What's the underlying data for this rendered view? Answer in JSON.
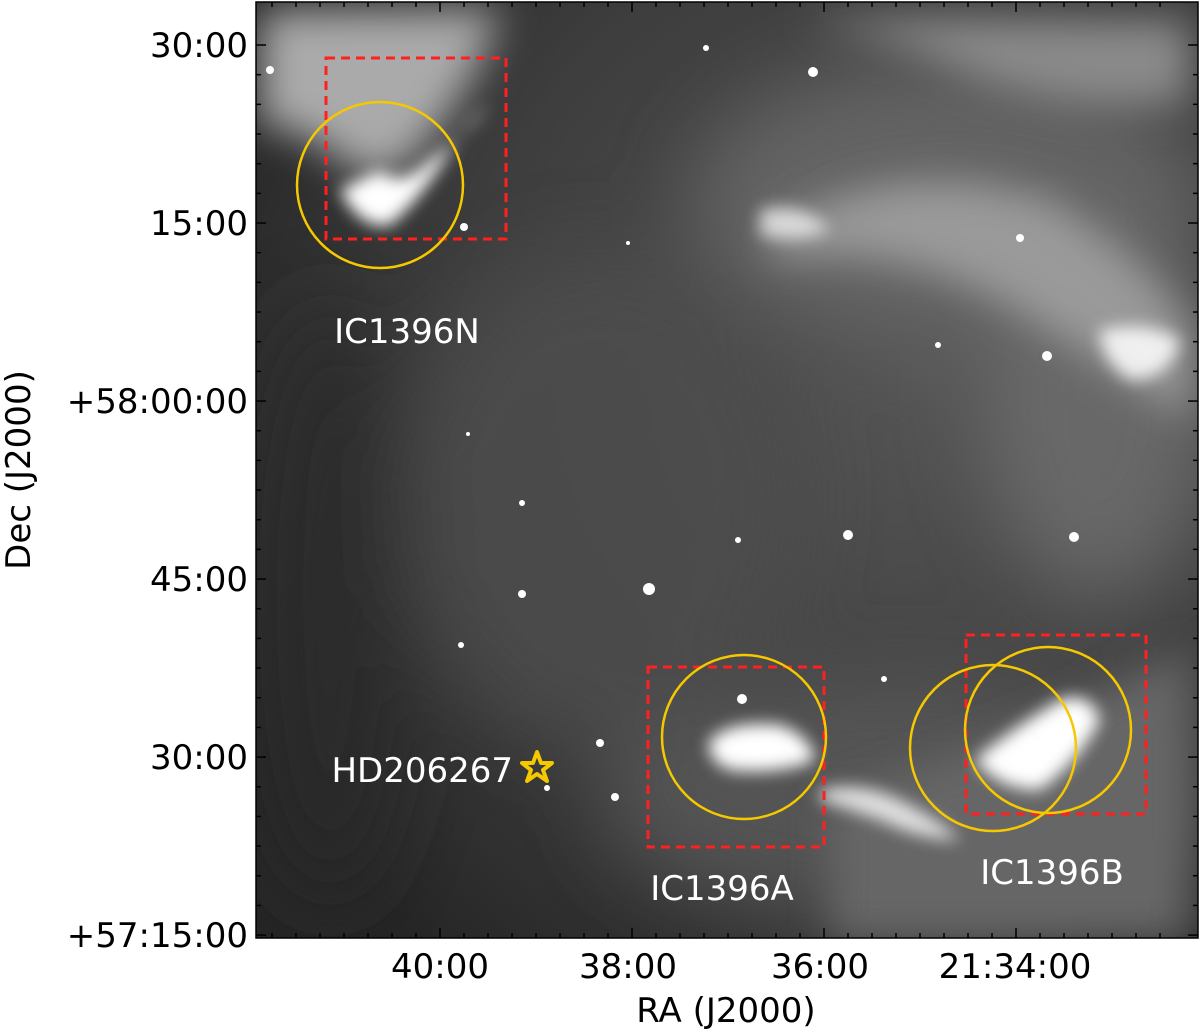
{
  "figure": {
    "x_axis": {
      "label": "RA (J2000)",
      "ticks": [
        "40:00",
        "38:00",
        "36:00",
        "21:34:00"
      ]
    },
    "y_axis": {
      "label": "Dec (J2000)",
      "ticks": [
        "30:00",
        "15:00",
        "+58:00:00",
        "45:00",
        "30:00",
        "+57:15:00"
      ]
    },
    "regions": [
      {
        "name": "IC1396N"
      },
      {
        "name": "IC1396A"
      },
      {
        "name": "IC1396B"
      }
    ],
    "star": {
      "name": "HD206267",
      "icon": "star-icon"
    },
    "colors": {
      "box": "#ff2020",
      "circle": "#f5c800",
      "star": "#f5c800",
      "background": "#3a3a3a"
    }
  }
}
